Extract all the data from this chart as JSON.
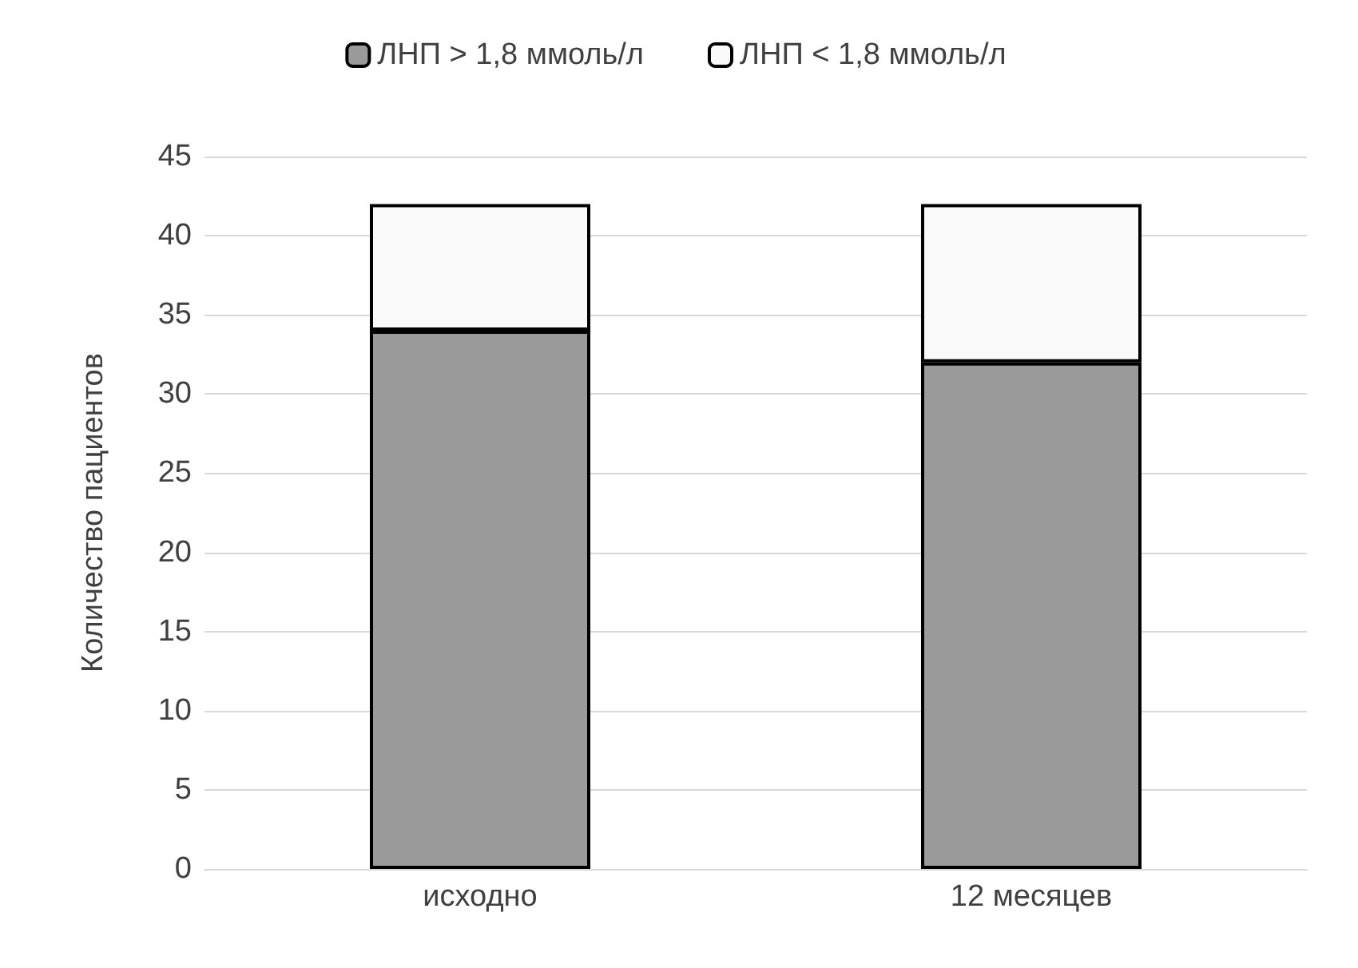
{
  "chart_data": {
    "type": "bar",
    "stacked": true,
    "ylabel": "Количество пациентов",
    "categories": [
      "исходно",
      "12 месяцев"
    ],
    "series": [
      {
        "name": "ЛНП > 1,8 ммоль/л",
        "color": "#9a9a9a",
        "values": [
          34,
          32
        ]
      },
      {
        "name": "ЛНП < 1,8 ммоль/л",
        "color": "#fafafa",
        "values": [
          8,
          10
        ]
      }
    ],
    "ylim": [
      0,
      45
    ],
    "yticks": [
      0,
      5,
      10,
      15,
      20,
      25,
      30,
      35,
      40,
      45
    ],
    "grid": "y",
    "legend": "top"
  }
}
